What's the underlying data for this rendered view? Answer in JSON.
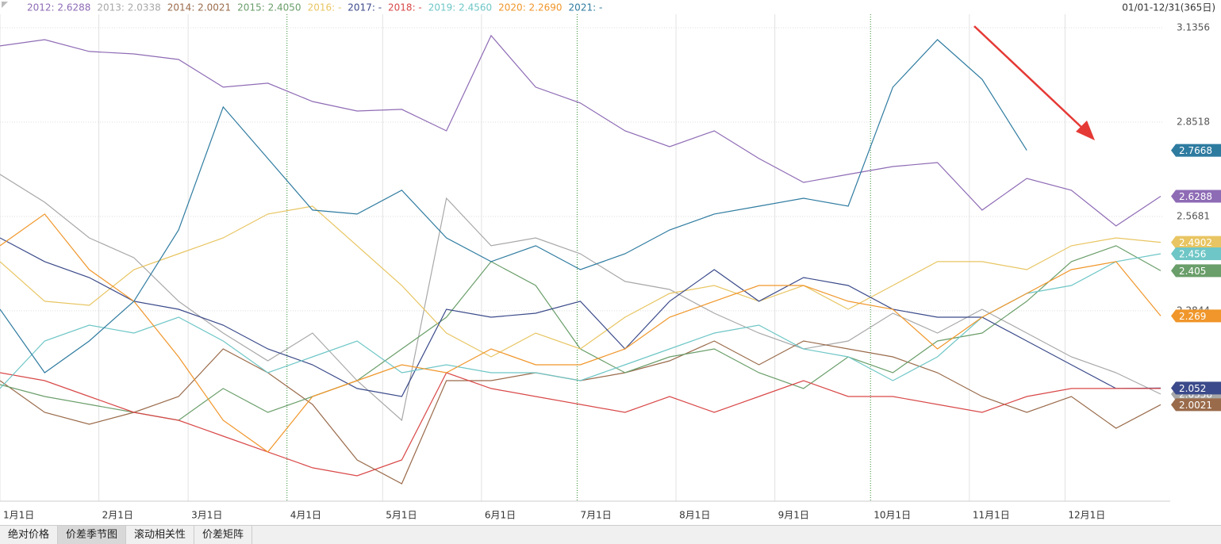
{
  "chart_data": {
    "type": "line",
    "date_range": "01/01-12/31(365日)",
    "x": [
      0,
      14,
      28,
      42,
      56,
      70,
      84,
      98,
      112,
      126,
      140,
      154,
      168,
      182,
      196,
      210,
      224,
      238,
      252,
      266,
      280,
      294,
      308,
      322,
      336,
      350,
      364
    ],
    "xlim": [
      0,
      365
    ],
    "xticks": [
      {
        "value": 0,
        "label": "1月1日"
      },
      {
        "value": 31,
        "label": "2月1日"
      },
      {
        "value": 59,
        "label": "3月1日"
      },
      {
        "value": 90,
        "label": "4月1日"
      },
      {
        "value": 120,
        "label": "5月1日"
      },
      {
        "value": 151,
        "label": "6月1日"
      },
      {
        "value": 181,
        "label": "7月1日"
      },
      {
        "value": 212,
        "label": "8月1日"
      },
      {
        "value": 243,
        "label": "9月1日"
      },
      {
        "value": 273,
        "label": "10月1日"
      },
      {
        "value": 304,
        "label": "11月1日"
      },
      {
        "value": 334,
        "label": "12月1日"
      }
    ],
    "ylim": [
      1.712,
      3.176
    ],
    "yticks": [
      3.1356,
      2.8518,
      2.5681,
      2.2844
    ],
    "grid": true,
    "series": [
      {
        "name": "2012",
        "legend": "2012: 2.6288",
        "color": "#8e6bb5",
        "end_label": true,
        "values": [
          3.0808,
          3.0998,
          3.0641,
          3.0569,
          3.0402,
          2.9568,
          2.9687,
          2.9138,
          2.8852,
          2.89,
          2.8256,
          3.1118,
          2.9568,
          2.9091,
          2.8256,
          2.7779,
          2.8256,
          2.7422,
          2.6706,
          2.6945,
          2.7183,
          2.7302,
          2.5872,
          2.6825,
          2.6468,
          2.5395,
          2.6288
        ]
      },
      {
        "name": "2013",
        "legend": "2013: 2.0338",
        "color": "#a8a8a8",
        "end_label": true,
        "values": [
          2.6945,
          2.611,
          2.5037,
          2.4441,
          2.313,
          2.2176,
          2.1341,
          2.2176,
          2.0745,
          1.9553,
          2.6229,
          2.4799,
          2.5037,
          2.456,
          2.3726,
          2.3487,
          2.2772,
          2.2176,
          2.1699,
          2.1937,
          2.2772,
          2.2176,
          2.2891,
          2.2176,
          2.146,
          2.0983,
          2.0338
        ]
      },
      {
        "name": "2014",
        "legend": "2014: 2.0021",
        "color": "#9a6b4b",
        "end_label": true,
        "values": [
          2.0745,
          1.9791,
          1.9433,
          1.9791,
          2.0268,
          2.1699,
          2.0983,
          2.0029,
          1.8361,
          1.7645,
          2.0745,
          2.0745,
          2.0983,
          2.0745,
          2.0983,
          2.1341,
          2.1937,
          2.1222,
          2.1937,
          2.1699,
          2.146,
          2.0983,
          2.0268,
          1.9791,
          2.0268,
          1.9314,
          2.0021
        ]
      },
      {
        "name": "2015",
        "legend": "2015: 2.4050",
        "color": "#6a9e6a",
        "end_label": true,
        "values": [
          2.0626,
          2.0268,
          2.0029,
          1.9791,
          1.9553,
          2.0507,
          1.9791,
          2.0268,
          2.0745,
          2.1699,
          2.2652,
          2.4322,
          2.3606,
          2.1699,
          2.0983,
          2.146,
          2.1699,
          2.0983,
          2.0507,
          2.146,
          2.0983,
          2.1937,
          2.2176,
          2.313,
          2.4322,
          2.4799,
          2.405
        ]
      },
      {
        "name": "2016",
        "legend": "2016: -",
        "color": "#e8c562",
        "end_label": true,
        "values": [
          2.4322,
          2.313,
          2.301,
          2.4083,
          2.456,
          2.5037,
          2.5753,
          2.5991,
          2.4799,
          2.3606,
          2.2176,
          2.146,
          2.2176,
          2.1699,
          2.2652,
          2.3368,
          2.3606,
          2.313,
          2.3606,
          2.2891,
          2.3606,
          2.4322,
          2.4322,
          2.4083,
          2.4799,
          2.5037,
          2.4902
        ]
      },
      {
        "name": "2017",
        "legend": "2017: -",
        "color": "#3b4a8a",
        "end_label": true,
        "values": [
          2.5037,
          2.4322,
          2.3845,
          2.313,
          2.2891,
          2.2414,
          2.1699,
          2.1222,
          2.0507,
          2.0268,
          2.2891,
          2.2652,
          2.2772,
          2.313,
          2.1699,
          2.313,
          2.4083,
          2.313,
          2.3845,
          2.3606,
          2.2891,
          2.2652,
          2.2652,
          2.1937,
          2.1222,
          2.0507,
          2.052
        ]
      },
      {
        "name": "2018",
        "legend": "2018: -",
        "color": "#d94848",
        "end_label": false,
        "values": [
          2.0983,
          2.0745,
          2.0268,
          1.9791,
          1.9553,
          1.9076,
          1.86,
          1.8123,
          1.7884,
          1.8361,
          2.0983,
          2.0507,
          2.0268,
          2.0029,
          1.9791,
          2.0268,
          1.9791,
          2.0268,
          2.0745,
          2.0268,
          2.0268,
          2.0029,
          1.9791,
          2.0268,
          2.0507,
          2.0507,
          2.0507
        ]
      },
      {
        "name": "2019",
        "legend": "2019: 2.4560",
        "color": "#6fc6c6",
        "end_label": true,
        "values": [
          2.0507,
          2.1937,
          2.2414,
          2.2176,
          2.2652,
          2.1937,
          2.0983,
          2.146,
          2.1937,
          2.0983,
          2.1222,
          2.0983,
          2.0983,
          2.0745,
          2.1222,
          2.1699,
          2.2176,
          2.2414,
          2.1699,
          2.146,
          2.0745,
          2.146,
          2.2652,
          2.3368,
          2.3606,
          2.4322,
          2.456
        ]
      },
      {
        "name": "2020",
        "legend": "2020: 2.2690",
        "color": "#f0962a",
        "end_label": true,
        "values": [
          2.4799,
          2.5753,
          2.4083,
          2.313,
          2.146,
          1.9553,
          1.86,
          2.0268,
          2.0745,
          2.1222,
          2.0983,
          2.1699,
          2.1222,
          2.1222,
          2.1699,
          2.2652,
          2.313,
          2.3606,
          2.3606,
          2.313,
          2.2891,
          2.1699,
          2.2652,
          2.3368,
          2.4083,
          2.4322,
          2.269
        ]
      },
      {
        "name": "2021",
        "legend": "2021: -",
        "color": "#2e7ba0",
        "end_label": true,
        "values": [
          2.2891,
          2.0983,
          2.1937,
          2.313,
          2.5275,
          2.8972,
          2.7422,
          2.5872,
          2.5753,
          2.6468,
          2.5037,
          2.4322,
          2.4799,
          2.4083,
          2.456,
          2.5275,
          2.5753,
          2.5991,
          2.6229,
          2.5991,
          2.9568,
          3.0998,
          2.9806,
          2.7668,
          null,
          null,
          null
        ]
      }
    ]
  },
  "tabs": [
    "绝对价格",
    "价差季节图",
    "滚动相关性",
    "价差矩阵"
  ],
  "selected_tab": 1
}
